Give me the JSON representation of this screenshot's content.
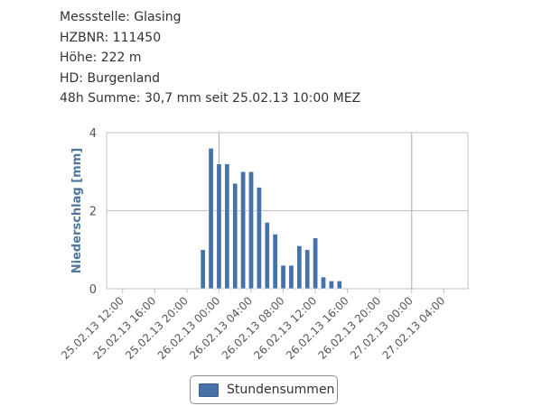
{
  "info": {
    "station": "Messstelle: Glasing",
    "hzbnr": "HZBNR: 111450",
    "height": "Höhe: 222 m",
    "hd": "HD: Burgenland",
    "sum48h": "48h Summe: 30,7 mm seit 25.02.13 10:00 MEZ"
  },
  "chart_data": {
    "type": "bar",
    "title": "",
    "xlabel": "",
    "ylabel": "Niederschlag [mm]",
    "ylim": [
      0,
      4
    ],
    "yticks": [
      0,
      2,
      4
    ],
    "x_start": "25.02.13 10:00",
    "x_end": "27.02.13 07:00",
    "x_tick_labels": [
      "25.02.13 12:00",
      "25.02.13 16:00",
      "25.02.13 20:00",
      "26.02.13 00:00",
      "26.02.13 04:00",
      "26.02.13 08:00",
      "26.02.13 12:00",
      "26.02.13 16:00",
      "26.02.13 20:00",
      "27.02.13 00:00",
      "27.02.13 04:00"
    ],
    "major_gridlines_x": [
      "26.02.13 00:00",
      "27.02.13 00:00"
    ],
    "grid": true,
    "legend_position": "bottom",
    "series": [
      {
        "name": "Stundensummen",
        "color": "#4572a7",
        "x": [
          "25.02.13 22:00",
          "25.02.13 23:00",
          "26.02.13 00:00",
          "26.02.13 01:00",
          "26.02.13 02:00",
          "26.02.13 03:00",
          "26.02.13 04:00",
          "26.02.13 05:00",
          "26.02.13 06:00",
          "26.02.13 07:00",
          "26.02.13 08:00",
          "26.02.13 09:00",
          "26.02.13 10:00",
          "26.02.13 11:00",
          "26.02.13 12:00",
          "26.02.13 13:00",
          "26.02.13 14:00",
          "26.02.13 15:00"
        ],
        "values": [
          1.0,
          3.6,
          3.2,
          3.2,
          2.7,
          3.0,
          3.0,
          2.6,
          1.7,
          1.4,
          0.6,
          0.6,
          1.1,
          1.0,
          1.3,
          0.3,
          0.2,
          0.2
        ]
      }
    ]
  }
}
